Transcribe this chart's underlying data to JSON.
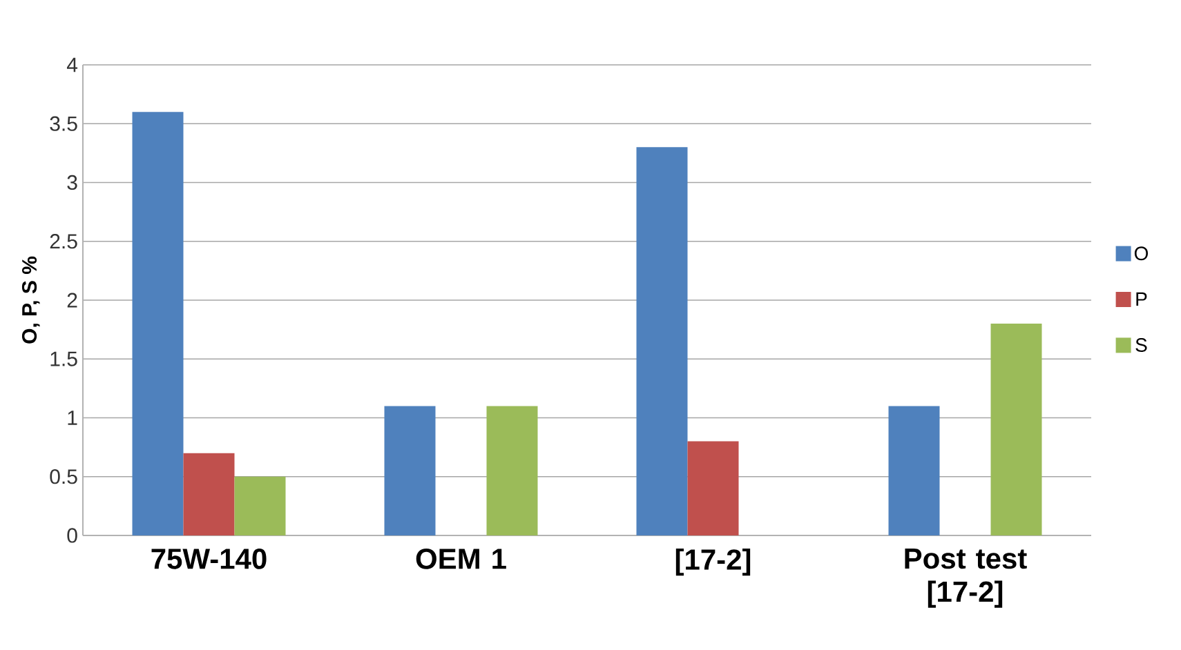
{
  "chart_data": {
    "type": "bar",
    "ylabel": "O, P, S %",
    "categories": [
      "75W-140",
      "OEM 1",
      "[17-2]",
      "Post test [17-2]"
    ],
    "series": [
      {
        "name": "O",
        "color": "#4f81bd",
        "values": [
          3.6,
          1.1,
          3.3,
          1.1
        ]
      },
      {
        "name": "P",
        "color": "#c0504d",
        "values": [
          0.7,
          null,
          0.8,
          null
        ]
      },
      {
        "name": "S",
        "color": "#9bbb59",
        "values": [
          0.5,
          1.1,
          null,
          1.8
        ]
      }
    ],
    "ylim": [
      0,
      4
    ],
    "yticks": [
      0,
      0.5,
      1,
      1.5,
      2,
      2.5,
      3,
      3.5,
      4
    ],
    "grid": "y",
    "legend": "right"
  }
}
